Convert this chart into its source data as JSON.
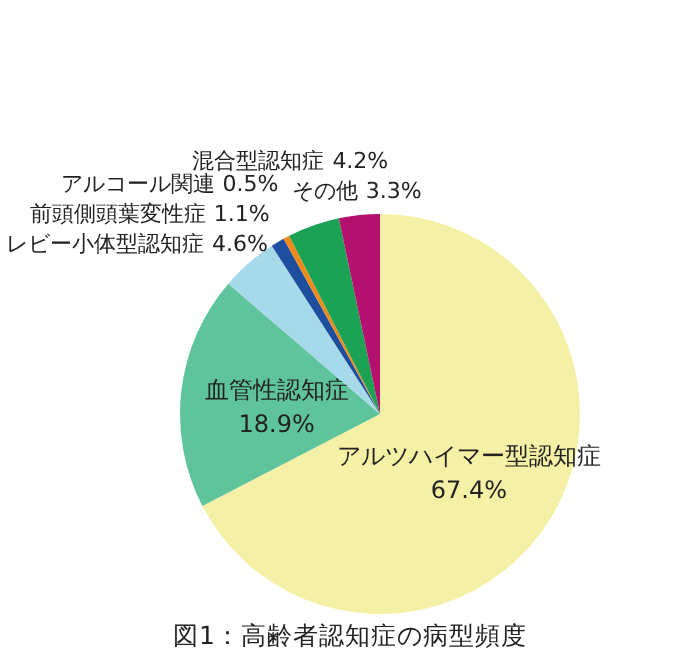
{
  "chart_data": {
    "type": "pie",
    "title": "図1：高齢者認知症の病型頻度",
    "categories": [
      "アルツハイマー型認知症",
      "血管性認知症",
      "レビー小体型認知症",
      "前頭側頭葉変性症",
      "アルコール関連",
      "混合型認知症",
      "その他"
    ],
    "values": [
      67.4,
      18.9,
      4.6,
      1.1,
      0.5,
      4.2,
      3.3
    ],
    "colors": [
      "#f4f1a6",
      "#5fc39c",
      "#a6d9ea",
      "#1d4f9e",
      "#f08a1c",
      "#1ba254",
      "#b3106f"
    ],
    "value_labels": [
      "67.4%",
      "18.9%",
      "4.6%",
      "1.1%",
      "0.5%",
      "4.2%",
      "3.3%"
    ]
  }
}
